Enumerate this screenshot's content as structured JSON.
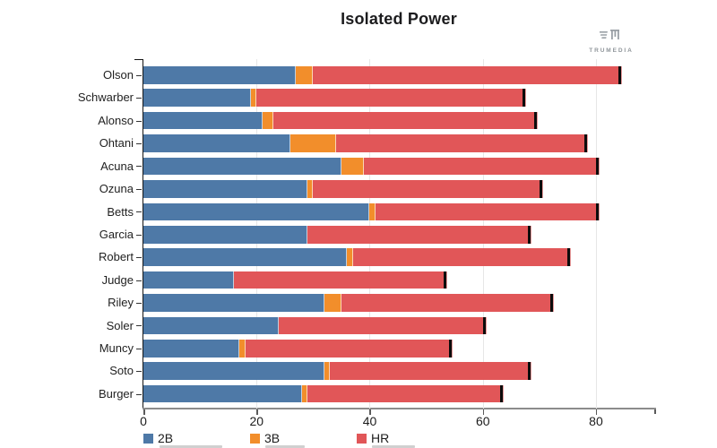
{
  "title": "Isolated Power",
  "branding": {
    "logo_text": "TRUMEDIA"
  },
  "legend": [
    {
      "label": "2B",
      "color": "#4e79a7"
    },
    {
      "label": "3B",
      "color": "#f28e2b"
    },
    {
      "label": "HR",
      "color": "#e15658"
    }
  ],
  "chart_data": {
    "type": "bar",
    "orientation": "horizontal",
    "stacked": true,
    "title": "Isolated Power",
    "categories": [
      "Olson",
      "Schwarber",
      "Alonso",
      "Ohtani",
      "Acuna",
      "Ozuna",
      "Betts",
      "Garcia",
      "Robert",
      "Judge",
      "Riley",
      "Soler",
      "Muncy",
      "Soto",
      "Burger"
    ],
    "series": [
      {
        "name": "2B",
        "color": "#4e79a7",
        "values": [
          27,
          19,
          21,
          26,
          35,
          29,
          40,
          29,
          36,
          16,
          32,
          24,
          17,
          32,
          28
        ]
      },
      {
        "name": "3B",
        "color": "#f28e2b",
        "values": [
          3,
          1,
          2,
          8,
          4,
          1,
          1,
          0,
          1,
          0,
          3,
          0,
          1,
          1,
          1
        ]
      },
      {
        "name": "HR",
        "color": "#e15658",
        "values": [
          54,
          47,
          46,
          44,
          41,
          40,
          39,
          39,
          38,
          37,
          37,
          36,
          36,
          35,
          34
        ]
      }
    ],
    "totals": [
      84,
      67,
      69,
      78,
      80,
      70,
      80,
      68,
      75,
      53,
      72,
      60,
      54,
      68,
      63
    ],
    "xlabel": "",
    "ylabel": "",
    "xlim": [
      0,
      90.3
    ],
    "x_ticks": [
      0,
      20,
      40,
      60,
      80
    ],
    "x_tick_labels": [
      "0",
      "20",
      "40",
      "60",
      "80"
    ],
    "grid": "vertical-light",
    "legend_position": "bottom-left",
    "bar_endcap_color": "#0c0c0c",
    "colors": {
      "gridline": "#e7e7e7",
      "x_axis_line": "#8c8c8c",
      "y_axis_line": "#161616",
      "tick_label": "#1c1c1c"
    }
  }
}
